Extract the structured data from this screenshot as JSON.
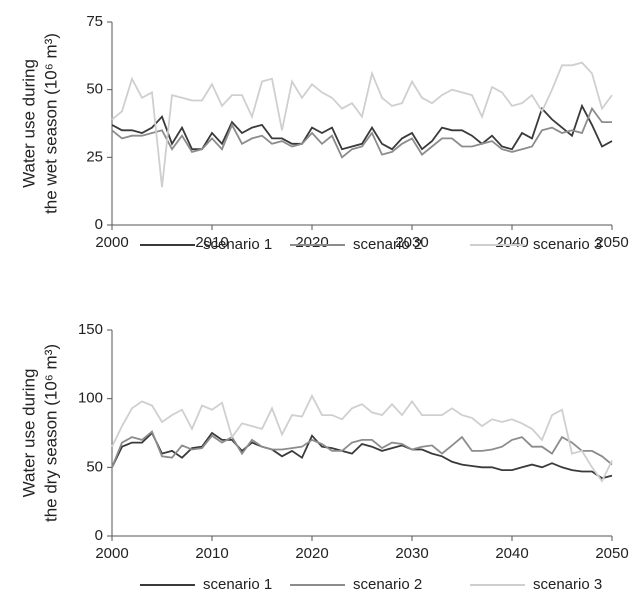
{
  "chart_data": [
    {
      "type": "line",
      "y_label": [
        "Water use during",
        "the wet season (10⁶ m³)"
      ],
      "x": [
        2000,
        2001,
        2002,
        2003,
        2004,
        2005,
        2006,
        2007,
        2008,
        2009,
        2010,
        2011,
        2012,
        2013,
        2014,
        2015,
        2016,
        2017,
        2018,
        2019,
        2020,
        2021,
        2022,
        2023,
        2024,
        2025,
        2026,
        2027,
        2028,
        2029,
        2030,
        2031,
        2032,
        2033,
        2034,
        2035,
        2036,
        2037,
        2038,
        2039,
        2040,
        2041,
        2042,
        2043,
        2044,
        2045,
        2046,
        2047,
        2048,
        2049,
        2050
      ],
      "xlim": [
        2000,
        2050
      ],
      "xticks": [
        2000,
        2010,
        2020,
        2030,
        2040,
        2050
      ],
      "ylim": [
        0,
        75
      ],
      "yticks": [
        0,
        25,
        50,
        75
      ],
      "series": [
        {
          "name": "scenario 1",
          "color": "#3a3a3a",
          "values": [
            37,
            35,
            35,
            34,
            36,
            40,
            30,
            36,
            28,
            28,
            34,
            30,
            38,
            34,
            36,
            37,
            32,
            32,
            30,
            30,
            36,
            34,
            36,
            28,
            29,
            30,
            36,
            30,
            28,
            32,
            34,
            28,
            31,
            36,
            35,
            35,
            33,
            30,
            33,
            29,
            28,
            34,
            32,
            43,
            39,
            36,
            33,
            44,
            37,
            29,
            31
          ]
        },
        {
          "name": "scenario 2",
          "color": "#8c8c8c",
          "values": [
            35,
            32,
            33,
            33,
            34,
            35,
            28,
            33,
            27,
            28,
            32,
            28,
            37,
            30,
            32,
            33,
            30,
            31,
            29,
            30,
            34,
            30,
            33,
            25,
            28,
            29,
            34,
            26,
            27,
            30,
            32,
            26,
            29,
            32,
            32,
            29,
            29,
            30,
            31,
            28,
            27,
            28,
            29,
            35,
            36,
            34,
            35,
            34,
            43,
            38,
            38
          ]
        },
        {
          "name": "scenario 3",
          "color": "#cfcfcf",
          "values": [
            39,
            42,
            54,
            47,
            49,
            14,
            48,
            47,
            46,
            46,
            52,
            44,
            48,
            48,
            40,
            53,
            54,
            35,
            53,
            47,
            52,
            49,
            47,
            43,
            45,
            40,
            56,
            47,
            44,
            45,
            53,
            47,
            45,
            48,
            50,
            49,
            48,
            40,
            51,
            49,
            44,
            45,
            48,
            42,
            50,
            59,
            59,
            60,
            56,
            43,
            48
          ]
        }
      ]
    },
    {
      "type": "line",
      "y_label": [
        "Water use during",
        "the dry season (10⁶ m³)"
      ],
      "x": [
        2000,
        2001,
        2002,
        2003,
        2004,
        2005,
        2006,
        2007,
        2008,
        2009,
        2010,
        2011,
        2012,
        2013,
        2014,
        2015,
        2016,
        2017,
        2018,
        2019,
        2020,
        2021,
        2022,
        2023,
        2024,
        2025,
        2026,
        2027,
        2028,
        2029,
        2030,
        2031,
        2032,
        2033,
        2034,
        2035,
        2036,
        2037,
        2038,
        2039,
        2040,
        2041,
        2042,
        2043,
        2044,
        2045,
        2046,
        2047,
        2048,
        2049,
        2050
      ],
      "xlim": [
        2000,
        2050
      ],
      "xticks": [
        2000,
        2010,
        2020,
        2030,
        2040,
        2050
      ],
      "ylim": [
        0,
        150
      ],
      "yticks": [
        0,
        50,
        100,
        150
      ],
      "series": [
        {
          "name": "scenario 1",
          "color": "#3a3a3a",
          "values": [
            50,
            65,
            68,
            68,
            75,
            60,
            62,
            57,
            64,
            65,
            75,
            70,
            70,
            62,
            68,
            65,
            63,
            58,
            62,
            57,
            73,
            65,
            64,
            62,
            60,
            67,
            65,
            62,
            64,
            66,
            63,
            63,
            60,
            58,
            54,
            52,
            51,
            50,
            50,
            48,
            48,
            50,
            52,
            50,
            53,
            50,
            48,
            47,
            47,
            42,
            44
          ]
        },
        {
          "name": "scenario 2",
          "color": "#8c8c8c",
          "values": [
            50,
            68,
            72,
            70,
            76,
            58,
            57,
            66,
            63,
            64,
            73,
            68,
            72,
            60,
            70,
            65,
            63,
            63,
            64,
            65,
            70,
            67,
            62,
            62,
            68,
            70,
            70,
            64,
            68,
            67,
            63,
            65,
            66,
            60,
            66,
            72,
            62,
            62,
            63,
            65,
            70,
            72,
            65,
            65,
            60,
            72,
            68,
            62,
            62,
            58,
            52
          ]
        },
        {
          "name": "scenario 3",
          "color": "#cfcfcf",
          "values": [
            65,
            80,
            93,
            98,
            95,
            83,
            88,
            92,
            78,
            95,
            92,
            97,
            72,
            82,
            80,
            78,
            93,
            74,
            88,
            87,
            102,
            88,
            88,
            85,
            93,
            96,
            90,
            88,
            96,
            88,
            98,
            88,
            88,
            88,
            93,
            88,
            86,
            80,
            85,
            83,
            85,
            82,
            78,
            70,
            88,
            92,
            60,
            62,
            50,
            40,
            55
          ]
        }
      ]
    }
  ]
}
